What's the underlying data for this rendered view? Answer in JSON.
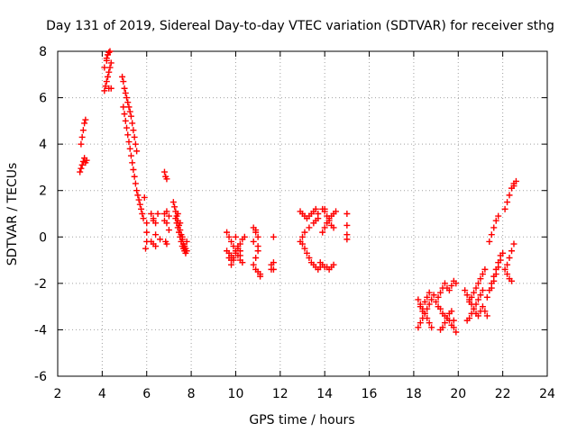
{
  "chart_data": {
    "type": "scatter",
    "title": "Day 131 of 2019, Sidereal Day-to-day VTEC variation (SDTVAR) for receiver sthg",
    "xlabel": "GPS time / hours",
    "ylabel": "SDTVAR / TECUs",
    "xlim": [
      2,
      24
    ],
    "ylim": [
      -6,
      8
    ],
    "xticks": [
      2,
      4,
      6,
      8,
      10,
      12,
      14,
      16,
      18,
      20,
      22,
      24
    ],
    "yticks": [
      -6,
      -4,
      -2,
      0,
      2,
      4,
      6,
      8
    ],
    "xtick_labels": [
      "2",
      "4",
      "6",
      "8",
      "10",
      "12",
      "14",
      "16",
      "18",
      "20",
      "22",
      "24"
    ],
    "ytick_labels": [
      "-6",
      "-4",
      "-2",
      "0",
      "2",
      "4",
      "6",
      "8"
    ],
    "grid": true,
    "marker": "plus",
    "color": "#ff0000",
    "series": [
      {
        "name": "sdtvar",
        "x": [
          3.0,
          3.05,
          3.1,
          3.15,
          3.2,
          3.25,
          3.3,
          3.05,
          3.1,
          3.15,
          3.2,
          3.25,
          4.1,
          4.15,
          4.2,
          4.25,
          4.3,
          4.35,
          4.4,
          4.2,
          4.25,
          4.3,
          4.35,
          4.4,
          4.1,
          4.2,
          4.3,
          4.9,
          4.95,
          5.0,
          5.05,
          5.1,
          5.15,
          5.2,
          5.25,
          5.3,
          5.35,
          5.4,
          5.45,
          5.5,
          5.55,
          4.95,
          5.0,
          5.05,
          5.1,
          5.15,
          5.2,
          5.25,
          5.3,
          5.35,
          5.4,
          5.45,
          5.5,
          5.55,
          5.6,
          5.65,
          5.7,
          5.75,
          5.8,
          5.85,
          5.9,
          6.0,
          6.0,
          5.95,
          6.0,
          6.2,
          6.3,
          6.4,
          6.5,
          6.2,
          6.3,
          6.4,
          6.6,
          6.3,
          6.4,
          6.8,
          6.85,
          6.9,
          6.8,
          6.9,
          7.0,
          6.85,
          6.9,
          7.0,
          6.8,
          6.9,
          7.2,
          7.25,
          7.3,
          7.35,
          7.4,
          7.45,
          7.5,
          7.55,
          7.6,
          7.65,
          7.7,
          7.75,
          7.8,
          7.3,
          7.35,
          7.4,
          7.45,
          7.5,
          7.55,
          7.6,
          7.65,
          7.7,
          7.75,
          7.8,
          7.4,
          7.5,
          7.6,
          7.7,
          9.6,
          9.7,
          9.8,
          9.9,
          10.0,
          10.1,
          10.2,
          10.3,
          9.6,
          9.7,
          9.8,
          9.9,
          10.0,
          10.1,
          10.2,
          10.3,
          10.4,
          9.8,
          9.9,
          10.0,
          10.1,
          10.2,
          9.7,
          9.8,
          10.0,
          10.2,
          10.8,
          10.9,
          11.0,
          11.1,
          10.8,
          10.9,
          11.0,
          10.8,
          10.9,
          11.0,
          11.1,
          10.9,
          11.0,
          11.6,
          11.7,
          11.6,
          11.7,
          11.7,
          12.9,
          13.0,
          13.1,
          13.2,
          13.3,
          13.4,
          13.5,
          13.6,
          13.7,
          12.9,
          13.0,
          13.1,
          13.2,
          13.3,
          13.4,
          13.5,
          13.6,
          13.7,
          13.8,
          13.0,
          13.1,
          13.3,
          13.5,
          13.6,
          13.7,
          13.9,
          14.0,
          14.1,
          14.2,
          14.3,
          14.4,
          14.5,
          13.9,
          14.0,
          14.1,
          14.2,
          14.3,
          14.4,
          13.8,
          13.9,
          14.0,
          14.1,
          14.2,
          14.3,
          14.4,
          14.0,
          14.1,
          15.0,
          15.0,
          15.0,
          15.0,
          18.2,
          18.3,
          18.4,
          18.5,
          18.6,
          18.7,
          18.8,
          18.9,
          18.3,
          18.4,
          18.5,
          18.6,
          18.7,
          18.2,
          18.3,
          18.4,
          18.5,
          18.6,
          18.7,
          18.8,
          19.0,
          19.1,
          19.2,
          19.3,
          19.4,
          19.5,
          19.6,
          19.7,
          19.8,
          19.9,
          19.1,
          19.2,
          19.3,
          19.4,
          19.5,
          19.6,
          19.7,
          19.8,
          19.2,
          19.3,
          19.4,
          19.5,
          19.6,
          19.7,
          19.8,
          19.9,
          20.3,
          20.4,
          20.5,
          20.6,
          20.7,
          20.8,
          20.9,
          21.0,
          21.1,
          21.2,
          21.3,
          20.4,
          20.5,
          20.6,
          20.7,
          20.8,
          20.9,
          21.0,
          21.1,
          20.5,
          20.6,
          20.7,
          20.8,
          20.9,
          21.0,
          21.1,
          21.2,
          21.3,
          21.4,
          21.5,
          21.6,
          21.7,
          21.8,
          21.9,
          21.4,
          21.5,
          21.6,
          21.7,
          21.8,
          21.5,
          21.6,
          21.7,
          21.8,
          21.9,
          22.0,
          22.1,
          22.2,
          22.3,
          22.4,
          22.5,
          22.1,
          22.2,
          22.3,
          22.4,
          22.5,
          22.6,
          22.2,
          22.3,
          22.4,
          22.5
        ],
        "y": [
          2.8,
          2.95,
          3.1,
          3.25,
          3.4,
          3.2,
          3.3,
          4.0,
          4.3,
          4.6,
          4.9,
          5.05,
          6.3,
          6.5,
          6.7,
          6.9,
          7.1,
          7.3,
          7.5,
          7.7,
          7.85,
          7.95,
          8.0,
          6.4,
          7.3,
          7.6,
          6.4,
          6.9,
          6.7,
          6.4,
          6.2,
          6.0,
          5.8,
          5.6,
          5.4,
          5.2,
          4.9,
          4.6,
          4.3,
          4.0,
          3.7,
          5.6,
          5.3,
          5.0,
          4.7,
          4.4,
          4.1,
          3.8,
          3.5,
          3.2,
          2.9,
          2.6,
          2.3,
          2.0,
          1.8,
          1.6,
          1.4,
          1.2,
          1.0,
          0.8,
          1.7,
          0.6,
          0.2,
          -0.5,
          -0.2,
          1.0,
          0.8,
          0.6,
          1.0,
          -0.2,
          -0.3,
          -0.4,
          -0.1,
          0.7,
          0.1,
          2.8,
          2.6,
          2.5,
          1.0,
          0.6,
          0.3,
          -0.2,
          -0.3,
          0.9,
          0.7,
          1.1,
          1.5,
          1.3,
          1.1,
          0.9,
          0.7,
          0.5,
          0.3,
          0.1,
          -0.1,
          -0.3,
          -0.4,
          -0.5,
          -0.6,
          0.8,
          0.6,
          0.4,
          0.2,
          0.0,
          -0.2,
          -0.4,
          -0.5,
          -0.6,
          -0.7,
          -0.2,
          1.0,
          0.6,
          0.0,
          -0.4,
          0.2,
          0.0,
          -0.2,
          -0.4,
          -0.6,
          -0.8,
          -1.0,
          -1.1,
          -0.6,
          -0.7,
          -0.8,
          -0.9,
          -0.7,
          -0.5,
          -0.3,
          -0.1,
          0.0,
          -1.2,
          -1.0,
          -0.6,
          -0.4,
          -0.8,
          -0.9,
          -1.0,
          0.0,
          -0.6,
          0.4,
          0.2,
          -0.6,
          -1.6,
          -0.2,
          -0.9,
          0.0,
          -1.2,
          -1.4,
          -1.5,
          -1.7,
          0.3,
          -0.4,
          -1.2,
          0.0,
          -1.4,
          -1.4,
          -1.1,
          1.1,
          1.0,
          0.9,
          0.8,
          0.9,
          1.0,
          1.1,
          1.2,
          1.0,
          -0.2,
          -0.3,
          -0.5,
          -0.7,
          -0.9,
          -1.1,
          -1.2,
          -1.3,
          -1.4,
          -1.3,
          0.0,
          0.2,
          0.4,
          0.6,
          0.7,
          0.8,
          1.2,
          1.1,
          0.9,
          0.8,
          0.9,
          1.0,
          1.1,
          0.2,
          0.4,
          0.6,
          0.7,
          0.5,
          0.4,
          -1.1,
          -1.2,
          -1.3,
          -1.3,
          -1.4,
          -1.3,
          -1.2,
          1.2,
          0.6,
          1.0,
          0.5,
          0.1,
          -0.1,
          -3.9,
          -3.7,
          -3.5,
          -3.3,
          -3.1,
          -2.9,
          -2.7,
          -2.5,
          -3.0,
          -3.2,
          -2.8,
          -2.6,
          -2.4,
          -2.7,
          -2.9,
          -3.1,
          -3.3,
          -3.5,
          -3.7,
          -3.9,
          -2.8,
          -2.6,
          -2.4,
          -2.2,
          -2.0,
          -2.2,
          -2.3,
          -2.1,
          -1.9,
          -2.0,
          -3.0,
          -3.1,
          -3.3,
          -3.4,
          -3.5,
          -3.6,
          -3.8,
          -3.9,
          -4.0,
          -3.9,
          -3.7,
          -3.5,
          -3.3,
          -3.2,
          -3.6,
          -4.1,
          -2.3,
          -2.5,
          -2.7,
          -2.9,
          -3.1,
          -3.3,
          -3.4,
          -3.2,
          -3.0,
          -3.2,
          -3.4,
          -3.6,
          -3.5,
          -3.3,
          -3.1,
          -2.9,
          -2.7,
          -2.5,
          -2.3,
          -2.8,
          -2.6,
          -2.4,
          -2.2,
          -2.0,
          -1.8,
          -1.6,
          -1.4,
          -2.6,
          -2.3,
          -2.0,
          -1.7,
          -1.4,
          -1.1,
          -0.8,
          -0.2,
          0.1,
          0.4,
          0.7,
          0.9,
          -2.2,
          -1.9,
          -1.6,
          -1.3,
          -1.0,
          -0.7,
          1.2,
          1.5,
          1.8,
          2.1,
          2.3,
          -1.4,
          -1.6,
          -1.8,
          -1.9,
          2.2,
          2.4,
          -1.2,
          -0.9,
          -0.6,
          -0.3
        ]
      }
    ]
  }
}
